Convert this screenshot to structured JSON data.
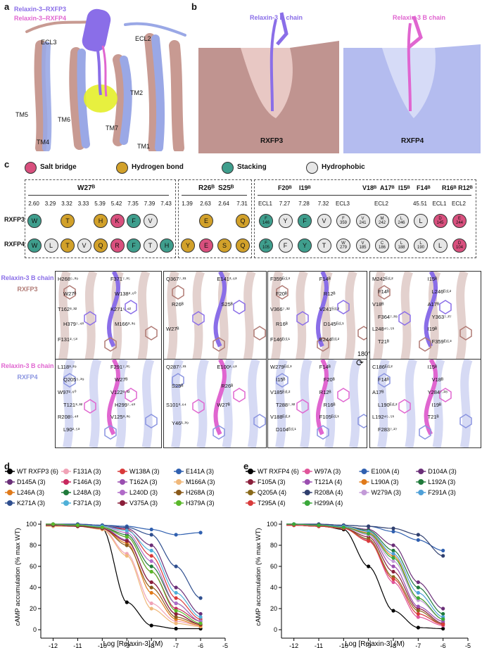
{
  "panels": {
    "a": "a",
    "b": "b",
    "c": "c",
    "d": "d",
    "e": "e"
  },
  "panel_a": {
    "legend1": "Relaxin-3–RXFP3",
    "legend2": "Relaxin-3–RXFP4",
    "labels": [
      "ECL3",
      "ECL2",
      "TM5",
      "TM6",
      "TM4",
      "TM7",
      "TM2",
      "TM1"
    ]
  },
  "panel_b": {
    "left_title": "Relaxin-3 B chain",
    "left_receptor": "RXFP3",
    "right_title": "Relaxin-3 B chain",
    "right_receptor": "RXFP4"
  },
  "panel_c": {
    "legend": [
      {
        "label": "Salt bridge",
        "color": "#d9507e"
      },
      {
        "label": "Hydrogen bond",
        "color": "#d2a12a"
      },
      {
        "label": "Stacking",
        "color": "#3f9e8d"
      },
      {
        "label": "Hydrophobic",
        "color": "#e6e6e6"
      }
    ],
    "row_labels": [
      "RXFP3",
      "RXFP4"
    ],
    "group1": {
      "header": "W27ᴮ",
      "positions": [
        "2.60",
        "3.29",
        "3.32",
        "3.33",
        "5.39",
        "5.42",
        "7.35",
        "7.39",
        "7.43"
      ],
      "rxfp3": [
        [
          "W",
          "s"
        ],
        [
          "",
          ""
        ],
        [
          "T",
          "h"
        ],
        [
          "",
          ""
        ],
        [
          "H",
          "h"
        ],
        [
          "K",
          "b"
        ],
        [
          "F",
          "s"
        ],
        [
          "V",
          "p"
        ],
        [
          "",
          ""
        ]
      ],
      "rxfp4": [
        [
          "W",
          "s"
        ],
        [
          "L",
          "p"
        ],
        [
          "T",
          "h"
        ],
        [
          "V",
          "p"
        ],
        [
          "Q",
          "h"
        ],
        [
          "R",
          "b"
        ],
        [
          "F",
          "s"
        ],
        [
          "T",
          "p"
        ],
        [
          "H",
          "s"
        ]
      ]
    },
    "group2": {
      "header1": "R26ᴮ",
      "header2": "S25ᴮ",
      "positions": [
        "1.39",
        "2.63",
        "2.64",
        "7.31"
      ],
      "rxfp3": [
        [
          "",
          ""
        ],
        [
          "E",
          "h"
        ],
        [
          "",
          ""
        ],
        [
          "Q",
          "h"
        ]
      ],
      "rxfp4": [
        [
          "Y",
          "h"
        ],
        [
          "E",
          "b"
        ],
        [
          "S",
          "h"
        ],
        [
          "Q",
          "h"
        ]
      ]
    },
    "group3": {
      "headers": [
        "F20ᴮ",
        "I19ᴮ",
        "V18ᴮ",
        "A17ᴮ",
        "I15ᴮ",
        "F14ᴮ",
        "R16ᴮ R12ᴮ"
      ],
      "positions": [
        "ECL1",
        "7.27",
        "7.28",
        "7.32",
        "ECL3",
        "",
        "ECL2",
        "",
        "45.51",
        "ECL1",
        "ECL2"
      ],
      "rxfp3": [
        [
          "F\n146",
          "s"
        ],
        [
          "Y",
          "p"
        ],
        [
          "F",
          "s"
        ],
        [
          "V",
          "p"
        ],
        [
          "F\n359",
          "p"
        ],
        [
          "V\n241",
          "p"
        ],
        [
          "M\n242",
          "p"
        ],
        [
          "L\n246",
          "p"
        ],
        [
          "L",
          "p"
        ],
        [
          "D\n145",
          "b"
        ],
        [
          "E\n244",
          "b"
        ]
      ],
      "rxfp4": [
        [
          "F\n105",
          "s"
        ],
        [
          "F",
          "p"
        ],
        [
          "Y",
          "s"
        ],
        [
          "T",
          "p"
        ],
        [
          "W\n279",
          "p"
        ],
        [
          "V\n185",
          "p"
        ],
        [
          "C\n186",
          "p"
        ],
        [
          "L\n188",
          "p"
        ],
        [
          "L\n190",
          "p"
        ],
        [
          "L",
          "p"
        ],
        [
          "D\n104",
          "b"
        ]
      ]
    },
    "struct_side_labels": {
      "top_chain": "Relaxin-3 B chain",
      "top_receptor": "RXFP3",
      "bottom_chain": "Relaxin-3 B chain",
      "bottom_receptor": "RXFP4"
    },
    "struct_labels": {
      "s1_top": [
        "H268⁵·³⁹",
        "F371⁷·³⁵",
        "W27ᴮ",
        "W138²·⁶⁰",
        "T162³·³²",
        "K271⁵·⁴²",
        "H379⁷·⁴³",
        "M166³·³⁶",
        "F131²·⁵³"
      ],
      "s1_bot": [
        "L118³·²⁹",
        "F291⁷·³⁵",
        "Q205⁵·³⁹",
        "W27ᴮ",
        "W97²·⁶⁰",
        "V122³·³²",
        "T121³·³²",
        "H299⁷·⁴³",
        "R208⁵·⁴²",
        "V125³·³⁶",
        "L90²·⁵³"
      ],
      "s2_top": [
        "Q367⁷·³¹",
        "E141²·⁶³",
        "R26ᴮ",
        "S25ᴮ",
        "W27ᴮ"
      ],
      "s2_bot": [
        "Q287⁷·³¹",
        "E100²·⁶³",
        "S25ᴮ",
        "R26ᴮ",
        "S101²·⁶⁴",
        "W27ᴮ",
        "Y46¹·³⁹"
      ],
      "s3_top": [
        "F359ᴱᶜᴸ³",
        "F14ᴮ",
        "F20ᴮ",
        "R12ᴮ",
        "V366⁷·³²",
        "V241ᴱᶜᴸ²",
        "R16ᴮ",
        "D145ᴱᶜᴸ¹",
        "F146ᴱᶜᴸ¹",
        "E244ᴱᶜᴸ²"
      ],
      "s3_bot": [
        "W279ᴱᶜᴸ³",
        "F14ᴮ",
        "I15ᴮ",
        "F20ᴮ",
        "V185ᴱᶜᴸ²",
        "R12ᴮ",
        "T288⁷·³²",
        "R16ᴮ",
        "V188ᴱᶜᴸ²",
        "F105ᴱᶜᴸ¹",
        "D104ᴱᶜᴸ¹"
      ],
      "s4_top": [
        "M242ᴱᶜᴸ²",
        "I15ᴮ",
        "F14ᴮ",
        "L246ᴱᶜᴸ²",
        "V18ᴮ",
        "A17ᴮ",
        "F364⁷·²⁸",
        "Y363⁷·²⁷",
        "L248⁴⁵·⁵¹",
        "I19ᴮ",
        "T21ᴮ",
        "F359ᴱᶜᴸ³"
      ],
      "s4_bot": [
        "C186ᴱᶜᴸ²",
        "I15ᴮ",
        "F14ᴮ",
        "V18ᴮ",
        "A17ᴮ",
        "Y284⁷·²⁸",
        "L190ᴱᶜᴸ²",
        "I19ᴮ",
        "L192⁴⁵·⁵¹",
        "T21ᴮ",
        "F283⁷·²⁷"
      ],
      "rotate": "180°"
    }
  },
  "chart_data": [
    {
      "type": "line",
      "panel": "d",
      "xlabel": "Log [Relaxin-3] (M)",
      "ylabel": "cAMP accumulation (% max WT)",
      "xlim": [
        -12.5,
        -5
      ],
      "ylim": [
        0,
        100
      ],
      "xticks": [
        -12,
        -11,
        -10,
        -9,
        -8,
        -7,
        -6,
        -5
      ],
      "yticks": [
        0,
        20,
        40,
        60,
        80,
        100
      ],
      "x": [
        -12,
        -11,
        -10,
        -9,
        -8,
        -7,
        -6
      ],
      "series": [
        {
          "name": "WT RXFP3 (6)",
          "color": "#000000",
          "values": [
            100,
            99,
            96,
            26,
            4,
            1,
            1
          ]
        },
        {
          "name": "F131A (3)",
          "color": "#f0a3b7",
          "values": [
            98,
            98,
            96,
            72,
            25,
            8,
            4
          ]
        },
        {
          "name": "W138A (3)",
          "color": "#d93a3a",
          "values": [
            100,
            99,
            98,
            95,
            70,
            30,
            10
          ]
        },
        {
          "name": "E141A (3)",
          "color": "#3060b0",
          "values": [
            100,
            100,
            99,
            98,
            95,
            90,
            92
          ]
        },
        {
          "name": "D145A (3)",
          "color": "#6a2f78",
          "values": [
            99,
            99,
            98,
            96,
            80,
            40,
            15
          ]
        },
        {
          "name": "F146A (3)",
          "color": "#c8285e",
          "values": [
            99,
            98,
            97,
            88,
            55,
            20,
            8
          ]
        },
        {
          "name": "T162A (3)",
          "color": "#9a4fb0",
          "values": [
            100,
            99,
            97,
            85,
            45,
            15,
            5
          ]
        },
        {
          "name": "M166A (3)",
          "color": "#f0b87a",
          "values": [
            98,
            98,
            95,
            70,
            20,
            6,
            3
          ]
        },
        {
          "name": "L246A (3)",
          "color": "#e07a1a",
          "values": [
            99,
            98,
            96,
            82,
            35,
            10,
            4
          ]
        },
        {
          "name": "L248A (3)",
          "color": "#1f7a3a",
          "values": [
            99,
            99,
            97,
            90,
            60,
            25,
            8
          ]
        },
        {
          "name": "L240D (3)",
          "color": "#b06ac8",
          "values": [
            100,
            99,
            98,
            92,
            65,
            25,
            8
          ]
        },
        {
          "name": "H268A (3)",
          "color": "#8a5a1a",
          "values": [
            99,
            98,
            96,
            80,
            40,
            12,
            5
          ]
        },
        {
          "name": "K271A (3)",
          "color": "#2f4f8f",
          "values": [
            100,
            100,
            99,
            97,
            90,
            60,
            30
          ]
        },
        {
          "name": "F371A (3)",
          "color": "#4fb0d8",
          "values": [
            99,
            99,
            98,
            94,
            75,
            35,
            12
          ]
        },
        {
          "name": "V375A (3)",
          "color": "#8a1f3a",
          "values": [
            99,
            98,
            96,
            84,
            45,
            15,
            5
          ]
        },
        {
          "name": "H379A (3)",
          "color": "#5ab82a",
          "values": [
            100,
            99,
            97,
            88,
            55,
            18,
            6
          ]
        }
      ]
    },
    {
      "type": "line",
      "panel": "e",
      "xlabel": "Log [Relaxin-3] (M)",
      "ylabel": "cAMP accumulation (% max WT)",
      "xlim": [
        -12.5,
        -5
      ],
      "ylim": [
        0,
        100
      ],
      "xticks": [
        -12,
        -11,
        -10,
        -9,
        -8,
        -7,
        -6,
        -5
      ],
      "yticks": [
        0,
        20,
        40,
        60,
        80,
        100
      ],
      "x": [
        -12,
        -11,
        -10,
        -9,
        -8,
        -7,
        -6
      ],
      "series": [
        {
          "name": "WT RXFP4 (6)",
          "color": "#000000",
          "values": [
            100,
            99,
            95,
            60,
            18,
            2,
            1
          ]
        },
        {
          "name": "W97A (3)",
          "color": "#e0559a",
          "values": [
            99,
            99,
            97,
            85,
            45,
            12,
            4
          ]
        },
        {
          "name": "E100A (4)",
          "color": "#3060b0",
          "values": [
            100,
            100,
            99,
            98,
            93,
            85,
            75
          ]
        },
        {
          "name": "D104A (3)",
          "color": "#6a2f78",
          "values": [
            100,
            99,
            98,
            95,
            80,
            45,
            20
          ]
        },
        {
          "name": "F105A (3)",
          "color": "#8a1f3a",
          "values": [
            99,
            98,
            96,
            88,
            55,
            20,
            6
          ]
        },
        {
          "name": "T121A (4)",
          "color": "#9a4fb0",
          "values": [
            99,
            98,
            97,
            90,
            60,
            22,
            8
          ]
        },
        {
          "name": "L190A (3)",
          "color": "#e07a1a",
          "values": [
            100,
            99,
            97,
            92,
            70,
            30,
            10
          ]
        },
        {
          "name": "L192A (3)",
          "color": "#1f7a3a",
          "values": [
            100,
            99,
            98,
            94,
            75,
            40,
            15
          ]
        },
        {
          "name": "Q205A (4)",
          "color": "#8a6a1a",
          "values": [
            99,
            98,
            96,
            86,
            50,
            18,
            5
          ]
        },
        {
          "name": "R208A (4)",
          "color": "#2f3f6f",
          "values": [
            100,
            100,
            99,
            98,
            96,
            90,
            70
          ]
        },
        {
          "name": "W279A (3)",
          "color": "#c39ad8",
          "values": [
            99,
            99,
            97,
            90,
            65,
            28,
            10
          ]
        },
        {
          "name": "F291A (3)",
          "color": "#4fa0d8",
          "values": [
            100,
            99,
            98,
            93,
            72,
            35,
            12
          ]
        },
        {
          "name": "T295A (4)",
          "color": "#d93a3a",
          "values": [
            99,
            98,
            96,
            84,
            48,
            15,
            5
          ]
        },
        {
          "name": "H299A (4)",
          "color": "#3aa83a",
          "values": [
            100,
            99,
            97,
            91,
            68,
            30,
            10
          ]
        }
      ]
    }
  ]
}
